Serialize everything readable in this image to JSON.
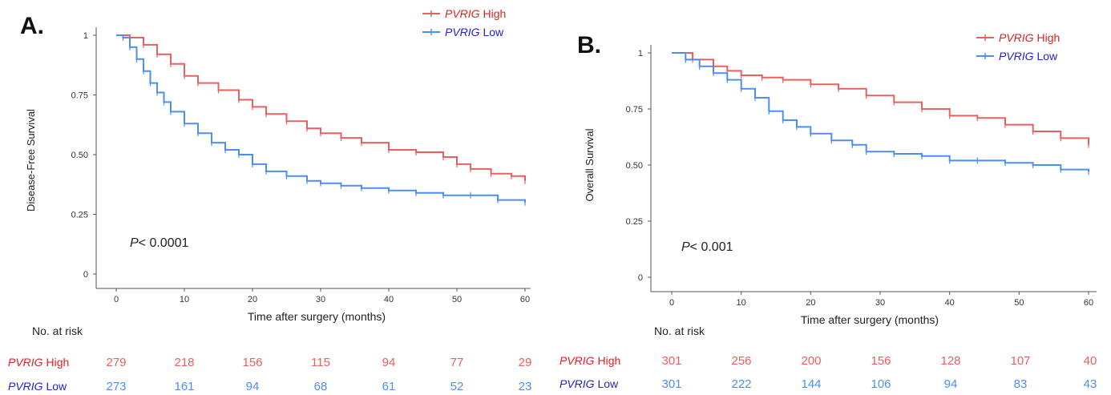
{
  "colors": {
    "high": "#e8615f",
    "low": "#4d8ff0",
    "low_label": "#2222d0",
    "high_label": "#dd2222",
    "axis": "#555555"
  },
  "chart_data": [
    {
      "panel_label": "A.",
      "type": "line",
      "ylabel": "Disease-Free Survival",
      "xlabel": "Time after surgery (months)",
      "xticks": [
        "0",
        "10",
        "20",
        "30",
        "40",
        "50",
        "60"
      ],
      "yticks": [
        "0",
        "0.25",
        "0.50",
        "0.75",
        "1"
      ],
      "xlim": [
        0,
        60
      ],
      "ylim": [
        0,
        1
      ],
      "pvalue": "P< 0.0001",
      "legend": {
        "position": "top-right",
        "entries": [
          {
            "gene": "PVRIG",
            "level": "High"
          },
          {
            "gene": "PVRIG",
            "level": "Low"
          }
        ]
      },
      "series": [
        {
          "name": "PVRIG High",
          "key": "high",
          "x": [
            0,
            2,
            4,
            6,
            8,
            10,
            12,
            15,
            18,
            20,
            22,
            25,
            28,
            30,
            33,
            36,
            40,
            44,
            48,
            50,
            52,
            55,
            58,
            60
          ],
          "y": [
            1.0,
            0.99,
            0.96,
            0.92,
            0.88,
            0.83,
            0.8,
            0.77,
            0.73,
            0.7,
            0.67,
            0.64,
            0.61,
            0.59,
            0.57,
            0.55,
            0.52,
            0.51,
            0.49,
            0.46,
            0.44,
            0.42,
            0.41,
            0.39
          ]
        },
        {
          "name": "PVRIG Low",
          "key": "low",
          "x": [
            0,
            1,
            2,
            3,
            4,
            5,
            6,
            7,
            8,
            10,
            12,
            14,
            16,
            18,
            20,
            22,
            25,
            28,
            30,
            33,
            36,
            40,
            44,
            48,
            52,
            56,
            60
          ],
          "y": [
            1.0,
            0.99,
            0.95,
            0.9,
            0.85,
            0.8,
            0.76,
            0.72,
            0.68,
            0.63,
            0.59,
            0.55,
            0.52,
            0.5,
            0.46,
            0.43,
            0.41,
            0.39,
            0.38,
            0.37,
            0.36,
            0.35,
            0.34,
            0.33,
            0.33,
            0.31,
            0.3
          ]
        }
      ],
      "risk_table": {
        "title": "No. at risk",
        "rows": [
          {
            "gene": "PVRIG",
            "level": "High",
            "key": "high",
            "values": [
              "279",
              "218",
              "156",
              "115",
              "94",
              "77",
              "29"
            ]
          },
          {
            "gene": "PVRIG",
            "level": "Low",
            "key": "low",
            "values": [
              "273",
              "161",
              "94",
              "68",
              "61",
              "52",
              "23"
            ]
          }
        ]
      }
    },
    {
      "panel_label": "B.",
      "type": "line",
      "ylabel": "Overall Survival",
      "xlabel": "Time after surgery (months)",
      "xticks": [
        "0",
        "10",
        "20",
        "30",
        "40",
        "50",
        "60"
      ],
      "yticks": [
        "0",
        "0.25",
        "0.50",
        "0.75",
        "1"
      ],
      "xlim": [
        0,
        60
      ],
      "ylim": [
        0,
        1
      ],
      "pvalue": "P< 0.001",
      "legend": {
        "position": "top-right",
        "entries": [
          {
            "gene": "PVRIG",
            "level": "High"
          },
          {
            "gene": "PVRIG",
            "level": "Low"
          }
        ]
      },
      "series": [
        {
          "name": "PVRIG High",
          "key": "high",
          "x": [
            0,
            3,
            6,
            8,
            10,
            13,
            16,
            20,
            24,
            28,
            32,
            36,
            40,
            44,
            48,
            52,
            56,
            60
          ],
          "y": [
            1.0,
            0.97,
            0.94,
            0.92,
            0.9,
            0.89,
            0.88,
            0.86,
            0.84,
            0.81,
            0.78,
            0.75,
            0.72,
            0.71,
            0.68,
            0.65,
            0.62,
            0.59
          ]
        },
        {
          "name": "PVRIG Low",
          "key": "low",
          "x": [
            0,
            2,
            4,
            6,
            8,
            10,
            12,
            14,
            16,
            18,
            20,
            23,
            26,
            28,
            32,
            36,
            40,
            44,
            48,
            52,
            56,
            60
          ],
          "y": [
            1.0,
            0.97,
            0.94,
            0.91,
            0.88,
            0.84,
            0.8,
            0.74,
            0.7,
            0.67,
            0.64,
            0.61,
            0.59,
            0.56,
            0.55,
            0.54,
            0.52,
            0.52,
            0.51,
            0.5,
            0.48,
            0.47
          ]
        }
      ],
      "risk_table": {
        "title": "No. at risk",
        "rows": [
          {
            "gene": "PVRIG",
            "level": "High",
            "key": "high",
            "values": [
              "301",
              "256",
              "200",
              "156",
              "128",
              "107",
              "40"
            ]
          },
          {
            "gene": "PVRIG",
            "level": "Low",
            "key": "low",
            "values": [
              "301",
              "222",
              "144",
              "106",
              "94",
              "83",
              "43"
            ]
          }
        ]
      }
    }
  ]
}
